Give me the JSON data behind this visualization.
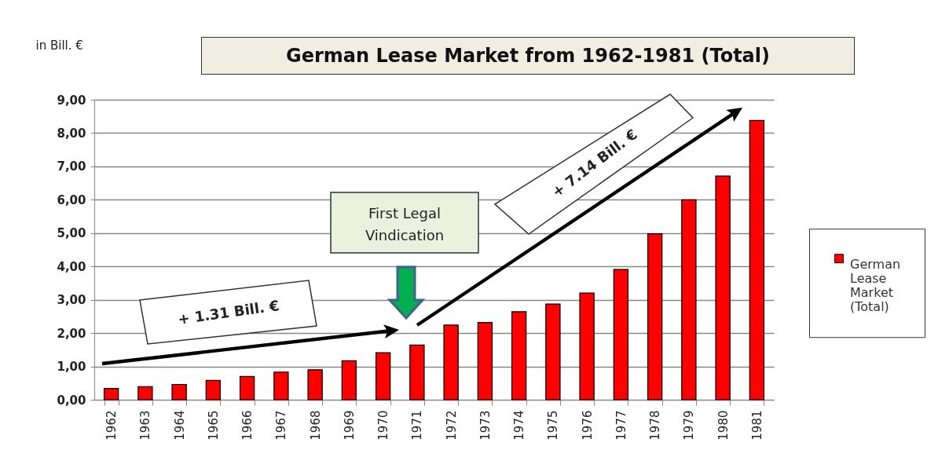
{
  "chart_data": {
    "type": "bar",
    "title": "German Lease Market from 1962-1981 (Total)",
    "ylabel": "in Bill. €",
    "categories": [
      "1962",
      "1963",
      "1964",
      "1965",
      "1966",
      "1967",
      "1968",
      "1969",
      "1970",
      "1971",
      "1972",
      "1973",
      "1974",
      "1975",
      "1976",
      "1977",
      "1978",
      "1979",
      "1980",
      "1981"
    ],
    "series": [
      {
        "name": "German Lease Market (Total)",
        "color": "#ff0000",
        "values": [
          0.34,
          0.39,
          0.46,
          0.58,
          0.7,
          0.83,
          0.9,
          1.17,
          1.41,
          1.64,
          2.24,
          2.32,
          2.64,
          2.87,
          3.2,
          3.91,
          4.98,
          6.0,
          6.71,
          8.38
        ]
      }
    ],
    "ylim": [
      0,
      9
    ],
    "yticks": [
      {
        "value": 0,
        "label": "0,00"
      },
      {
        "value": 1,
        "label": "1,00"
      },
      {
        "value": 2,
        "label": "2,00"
      },
      {
        "value": 3,
        "label": "3,00"
      },
      {
        "value": 4,
        "label": "4,00"
      },
      {
        "value": 5,
        "label": "5,00"
      },
      {
        "value": 6,
        "label": "6,00"
      },
      {
        "value": 7,
        "label": "7,00"
      },
      {
        "value": 8,
        "label": "8,00"
      },
      {
        "value": 9,
        "label": "9,00"
      }
    ],
    "grid": "y",
    "legend": "right",
    "annotations": [
      "First Legal Vindication",
      "+ 1.31 Bill. €",
      "+ 7.14 Bill. €"
    ]
  }
}
